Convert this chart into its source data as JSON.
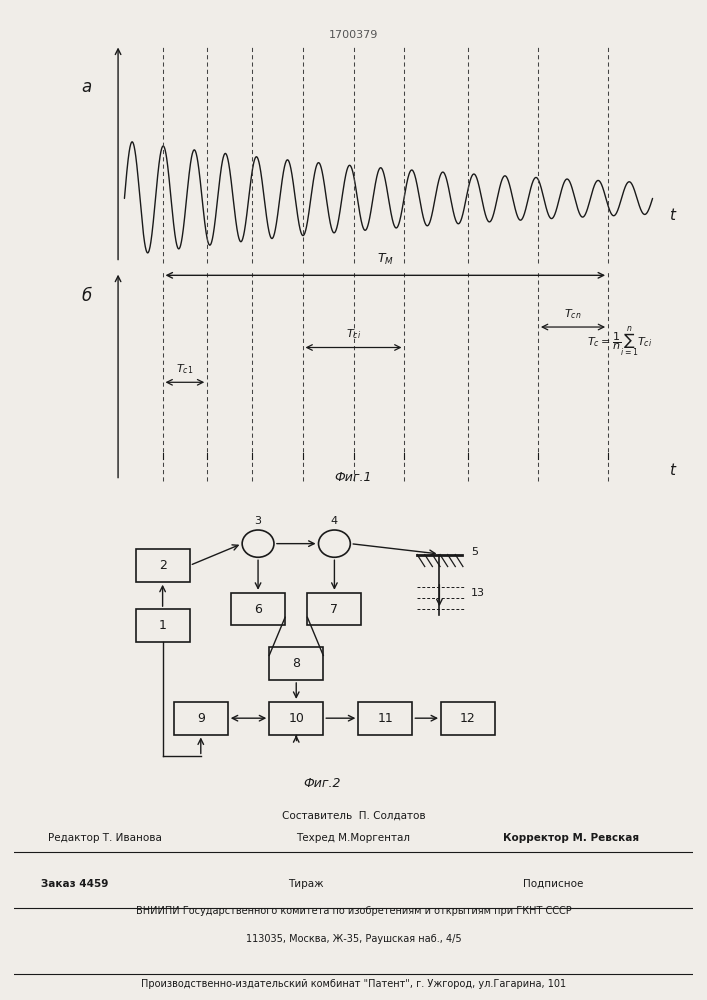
{
  "patent_number": "1700379",
  "bg_color": "#f0ede8",
  "line_color": "#1a1a1a",
  "top_axis_label": "a",
  "bottom_axis_label": "б",
  "time_label": "t",
  "tm_label": "T_M",
  "tc1_label": "T_{c1}",
  "tci_label": "T_{ci}",
  "tcn_label": "T_{cn}",
  "fig1_caption": "Фиг.1",
  "fig2_caption": "Фиг.2",
  "formula_label": "T_c = 1/n sum T_ci",
  "footer_sestavitel": "Составитель  П. Солдатов",
  "footer_tehred": "Техред М.Моргентал",
  "footer_redaktor": "Редактор Т. Иванова",
  "footer_korrektor": "Корректор М. Ревская",
  "footer_zakaz": "Заказ 4459",
  "footer_tirazh": "Тираж",
  "footer_podpisnoe": "Подписное",
  "footer_vniipи": "ВНИИПИ Государственного комитета по изобретениям и открытиям при ГКНТ СССР",
  "footer_address": "113035, Москва, Ж-35, Раушская наб., 4/5",
  "footer_kombinat": "Производственно-издательский комбинат \"Патент\", г. Ужгород, ул.Гагарина, 101"
}
